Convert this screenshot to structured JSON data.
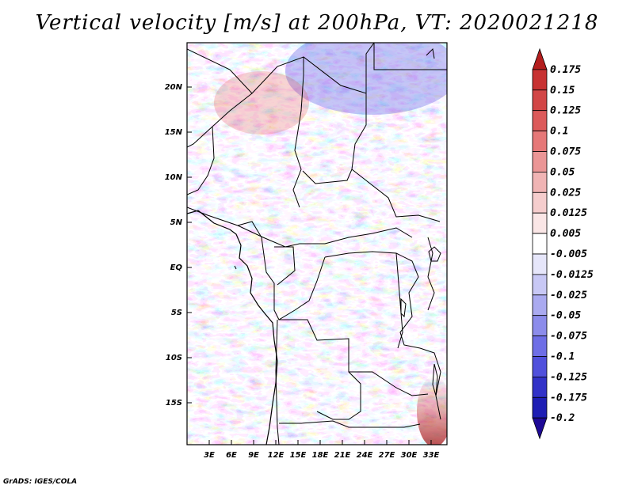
{
  "title": "Vertical velocity [m/s] at 200hPa, VT: 2020021218",
  "credit": "GrADS: IGES/COLA",
  "lat_labels": [
    "20N",
    "15N",
    "10N",
    "5N",
    "EQ",
    "5S",
    "10S",
    "15S"
  ],
  "lon_labels": [
    "3E",
    "6E",
    "9E",
    "12E",
    "15E",
    "18E",
    "21E",
    "24E",
    "27E",
    "30E",
    "33E"
  ],
  "colorbar": {
    "levels": [
      "0.175",
      "0.15",
      "0.125",
      "0.1",
      "0.075",
      "0.05",
      "0.025",
      "0.0125",
      "0.005",
      "-0.005",
      "-0.0125",
      "-0.025",
      "-0.05",
      "-0.075",
      "-0.1",
      "-0.125",
      "-0.175",
      "-0.2"
    ],
    "colors": [
      "#b41e1e",
      "#c83232",
      "#d24646",
      "#dc5a5a",
      "#e67878",
      "#eb9696",
      "#f0b4b4",
      "#f5cdcd",
      "#fae6e6",
      "#ffffff",
      "#e6e6fa",
      "#c8c8f5",
      "#aaaaf0",
      "#8c8ceb",
      "#6e6ee6",
      "#5050dc",
      "#3232c8",
      "#1e1eb4",
      "#1e0a96"
    ]
  }
}
